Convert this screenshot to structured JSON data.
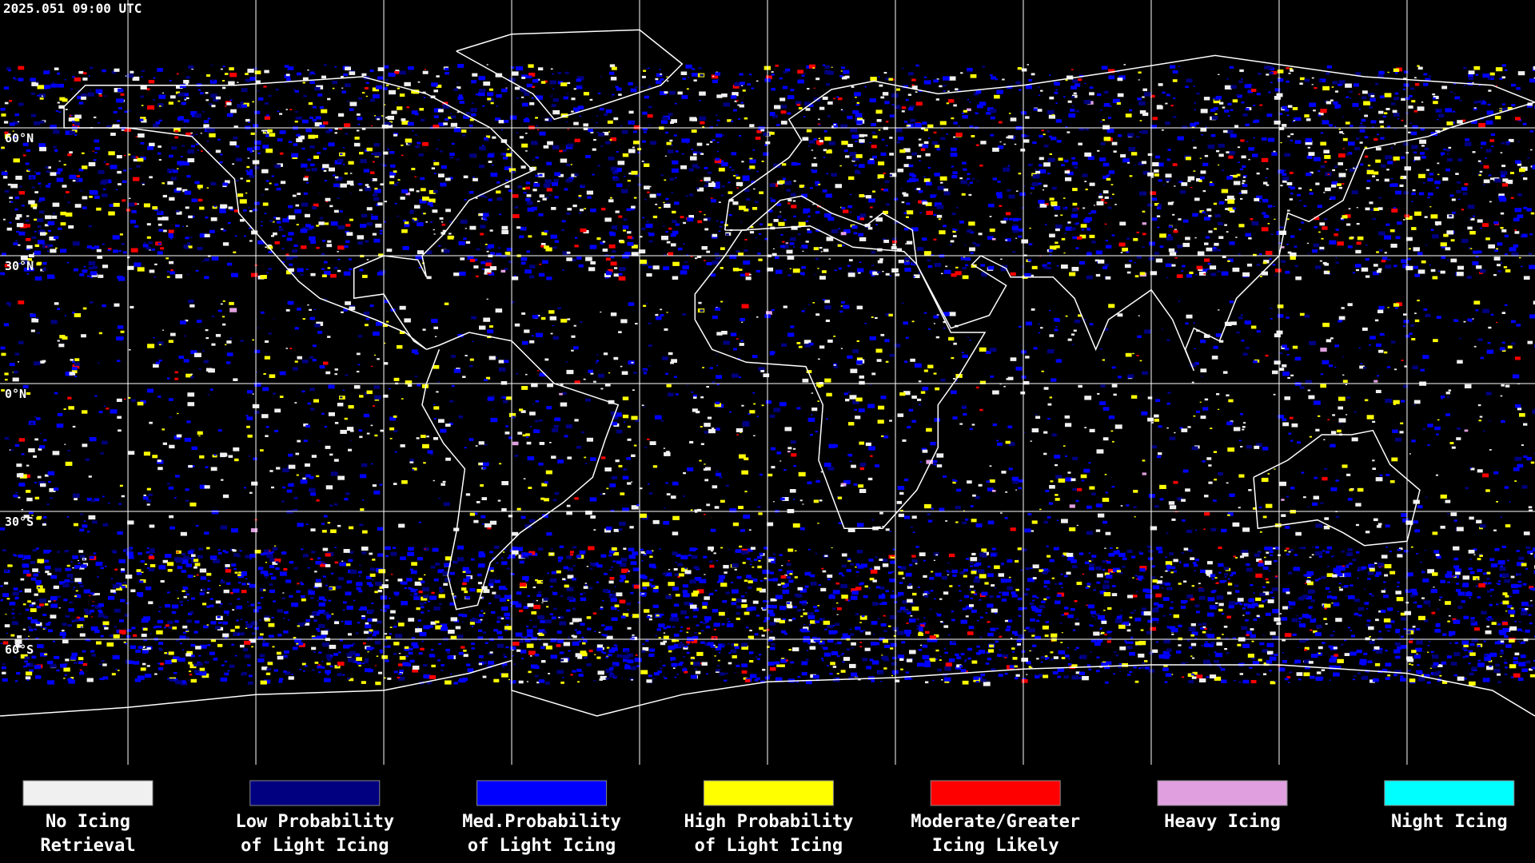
{
  "timestamp": "2025.051 09:00 UTC",
  "latitude_labels": [
    "60°N",
    "30°N",
    "0°N",
    "30°S",
    "60°S"
  ],
  "legend": [
    {
      "lines": [
        "No Icing",
        "Retrieval"
      ],
      "color": "#f0f0f0"
    },
    {
      "lines": [
        "Low Probability",
        "of Light Icing"
      ],
      "color": "#000080"
    },
    {
      "lines": [
        "Med.Probability",
        "of Light Icing"
      ],
      "color": "#0000ff"
    },
    {
      "lines": [
        "High Probability",
        "of Light Icing"
      ],
      "color": "#ffff00"
    },
    {
      "lines": [
        "Moderate/Greater",
        "Icing Likely"
      ],
      "color": "#ff0000"
    },
    {
      "lines": [
        "Heavy Icing"
      ],
      "color": "#e0a0e0"
    },
    {
      "lines": [
        "Night Icing"
      ],
      "color": "#00ffff"
    }
  ]
}
